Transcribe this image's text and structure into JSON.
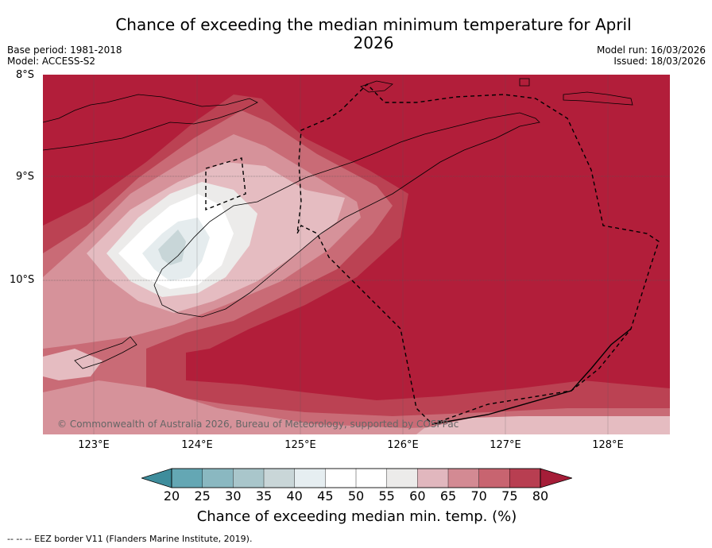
{
  "title": "Chance of exceeding the median minimum temperature for April 2026",
  "base_period": "Base period: 1981-2018",
  "model": "Model: ACCESS-S2",
  "model_run": "Model run: 16/03/2026",
  "issued": "Issued: 18/03/2026",
  "copyright": "© Commonwealth of Australia 2026, Bureau of Meteorology, supported by COSPPac",
  "colorbar_label": "Chance of exceeding median min. temp. (%)",
  "footnote": "-- -- -- EEZ border V11 (Flanders Marine Institute, 2019).",
  "lat_labels": [
    "8°S",
    "9°S",
    "10°S"
  ],
  "lon_labels": [
    "123°E",
    "124°E",
    "125°E",
    "126°E",
    "127°E",
    "128°E"
  ],
  "colorbar": {
    "ticks": [
      "20",
      "25",
      "30",
      "35",
      "40",
      "45",
      "50",
      "55",
      "60",
      "65",
      "70",
      "75",
      "80"
    ],
    "colors": [
      "#3e8d9c",
      "#64a7b4",
      "#8ab8c1",
      "#a9c6cb",
      "#c9d6d8",
      "#e6eef1",
      "#ffffff",
      "#ffffff",
      "#ecebea",
      "#e1b7be",
      "#d38a93",
      "#c86470",
      "#b83e51",
      "#a51d38"
    ]
  },
  "map_colors": {
    "c80": "#b21e3a",
    "c75": "#bb4253",
    "c70": "#c96b76",
    "c65": "#d6929a",
    "c60": "#e5bcc1",
    "c55": "#ecebea",
    "c50": "#ffffff",
    "c45": "#e5ecee",
    "c40": "#c8d6d8"
  }
}
